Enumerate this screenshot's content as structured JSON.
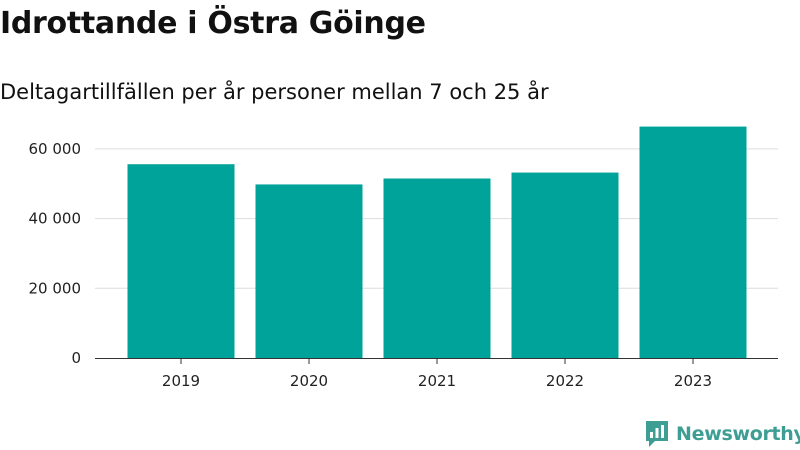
{
  "header": {
    "title": "Idrottande i Östra Göinge",
    "subtitle": "Deltagartillfällen per år personer mellan 7 och 25 år"
  },
  "brand": {
    "name": "Newsworthy",
    "icon": "newsworthy-logo-icon",
    "color": "#3e9e94"
  },
  "chart_data": {
    "type": "bar",
    "categories": [
      "2019",
      "2020",
      "2021",
      "2022",
      "2023"
    ],
    "values": [
      55600,
      49800,
      51500,
      53200,
      66400
    ],
    "ylim": [
      0,
      68000
    ],
    "yticks": [
      0,
      20000,
      40000,
      60000
    ],
    "ytick_labels": [
      "0",
      "20 000",
      "40 000",
      "60 000"
    ],
    "bar_color": "#00a39a",
    "grid": true,
    "legend": "none"
  }
}
